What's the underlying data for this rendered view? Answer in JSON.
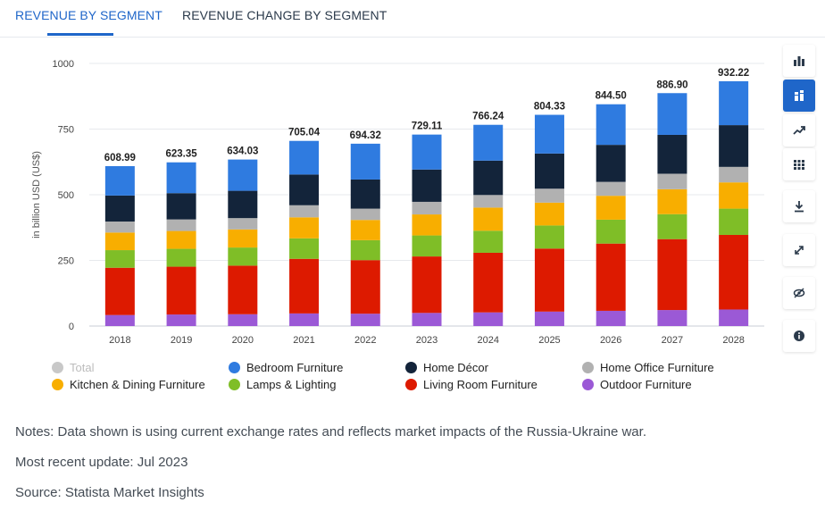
{
  "tabs": [
    {
      "label": "REVENUE BY SEGMENT",
      "active": true
    },
    {
      "label": "REVENUE CHANGE BY SEGMENT",
      "active": false
    }
  ],
  "toolbar": [
    {
      "icon": "bar-chart-icon",
      "active": false
    },
    {
      "icon": "stacked-bar-icon",
      "active": true
    },
    {
      "icon": "trend-line-icon",
      "active": false
    },
    {
      "icon": "table-grid-icon",
      "active": false
    },
    {
      "icon": "download-icon",
      "active": false
    },
    {
      "icon": "fullscreen-icon",
      "active": false
    },
    {
      "icon": "hide-eye-icon",
      "active": false
    },
    {
      "icon": "info-icon",
      "active": false
    }
  ],
  "chart_data": {
    "type": "bar",
    "stacked": true,
    "ylabel": "in billion USD (US$)",
    "ylim": [
      0,
      1000
    ],
    "yticks": [
      0,
      250,
      500,
      750,
      1000
    ],
    "grid": true,
    "categories": [
      "2018",
      "2019",
      "2020",
      "2021",
      "2022",
      "2023",
      "2024",
      "2025",
      "2026",
      "2027",
      "2028"
    ],
    "totals": [
      608.99,
      623.35,
      634.03,
      705.04,
      694.32,
      729.11,
      766.24,
      804.33,
      844.5,
      886.9,
      932.22
    ],
    "total_labels": [
      "608.99",
      "623.35",
      "634.03",
      "705.04",
      "694.32",
      "729.11",
      "766.24",
      "804.33",
      "844.50",
      "886.90",
      "932.22"
    ],
    "series": [
      {
        "name": "Outdoor Furniture",
        "color": "#9b59d6",
        "values": [
          42,
          44,
          45,
          48,
          47,
          50,
          52,
          55,
          58,
          61,
          63
        ]
      },
      {
        "name": "Living Room Furniture",
        "color": "#dd1a00",
        "values": [
          180,
          182,
          185,
          208,
          204,
          215,
          227,
          240,
          256,
          270,
          284
        ]
      },
      {
        "name": "Lamps & Lighting",
        "color": "#7fbe27",
        "values": [
          67,
          68,
          69,
          78,
          76,
          80,
          84,
          88,
          91,
          95,
          100
        ]
      },
      {
        "name": "Kitchen & Dining Furniture",
        "color": "#f8ae00",
        "values": [
          67,
          68,
          69,
          80,
          77,
          80,
          88,
          87,
          91,
          95,
          100
        ]
      },
      {
        "name": "Home Office Furniture",
        "color": "#b1b1b1",
        "values": [
          42,
          44,
          43,
          46,
          43,
          48,
          48,
          53,
          53,
          59,
          59
        ]
      },
      {
        "name": "Home Décor",
        "color": "#13243a",
        "values": [
          99,
          100,
          104,
          117,
          111,
          123,
          131,
          134,
          141,
          148,
          159
        ]
      },
      {
        "name": "Bedroom Furniture",
        "color": "#2f7be0",
        "values": [
          111.99,
          117.35,
          119.03,
          128.04,
          136.32,
          133.11,
          136.24,
          147.33,
          154.5,
          158.9,
          167.22
        ]
      }
    ],
    "legend_placement": "bottom"
  },
  "legend": [
    {
      "label": "Total",
      "color": "#c8c8c8",
      "muted": true
    },
    {
      "label": "Bedroom Furniture",
      "color": "#2f7be0"
    },
    {
      "label": "Home Décor",
      "color": "#13243a"
    },
    {
      "label": "Home Office Furniture",
      "color": "#b1b1b1"
    },
    {
      "label": "Kitchen & Dining Furniture",
      "color": "#f8ae00"
    },
    {
      "label": "Lamps & Lighting",
      "color": "#7fbe27"
    },
    {
      "label": "Living Room Furniture",
      "color": "#dd1a00"
    },
    {
      "label": "Outdoor Furniture",
      "color": "#9b59d6"
    }
  ],
  "notes": {
    "line1": "Notes: Data shown is using current exchange rates and reflects market impacts of the Russia-Ukraine war.",
    "line2": "Most recent update: Jul 2023",
    "line3": "Source: Statista Market Insights"
  }
}
